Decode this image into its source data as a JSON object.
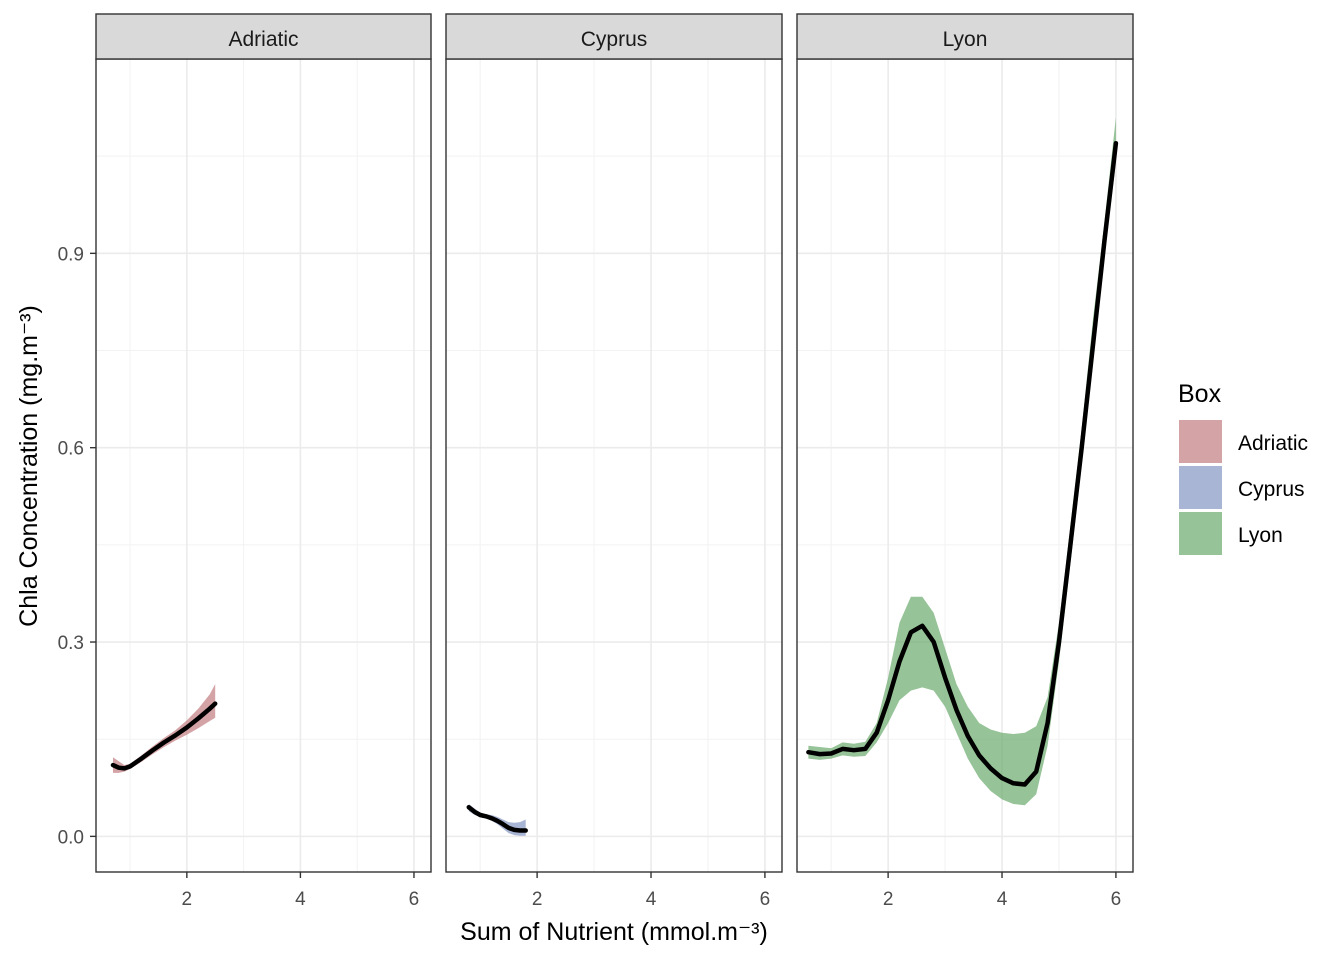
{
  "chart_data": {
    "type": "line",
    "xlabel": "Sum of Nutrient (mmol.m⁻³)",
    "ylabel": "Chla Concentration (mg.m⁻³)",
    "xlim": [
      0.4,
      6.3
    ],
    "ylim": [
      -0.055,
      1.2
    ],
    "x_ticks": [
      2,
      4,
      6
    ],
    "x_tick_labels": [
      "2",
      "4",
      "6"
    ],
    "y_ticks": [
      0.0,
      0.3,
      0.6,
      0.9
    ],
    "y_tick_labels": [
      "0.0",
      "0.3",
      "0.6",
      "0.9"
    ],
    "grid": true,
    "legend": {
      "title": "Box",
      "position": "right",
      "entries": [
        "Adriatic",
        "Cyprus",
        "Lyon"
      ]
    },
    "colors": {
      "Adriatic": "#c27c80",
      "Cyprus": "#8496c2",
      "Lyon": "#6aaa6b",
      "line": "#000000"
    },
    "panels": [
      {
        "name": "Adriatic",
        "x": [
          0.7,
          0.8,
          0.9,
          1.0,
          1.2,
          1.4,
          1.6,
          1.8,
          2.0,
          2.2,
          2.4,
          2.5
        ],
        "y": [
          0.11,
          0.106,
          0.105,
          0.108,
          0.12,
          0.133,
          0.145,
          0.156,
          0.168,
          0.182,
          0.197,
          0.205
        ],
        "lower": [
          0.098,
          0.098,
          0.1,
          0.104,
          0.115,
          0.127,
          0.138,
          0.148,
          0.157,
          0.167,
          0.178,
          0.183
        ],
        "upper": [
          0.122,
          0.116,
          0.11,
          0.112,
          0.125,
          0.139,
          0.152,
          0.164,
          0.179,
          0.197,
          0.219,
          0.235
        ]
      },
      {
        "name": "Cyprus",
        "x": [
          0.8,
          0.9,
          1.0,
          1.1,
          1.2,
          1.3,
          1.4,
          1.5,
          1.6,
          1.7,
          1.8
        ],
        "y": [
          0.045,
          0.038,
          0.033,
          0.031,
          0.028,
          0.024,
          0.019,
          0.013,
          0.01,
          0.009,
          0.009
        ],
        "lower": [
          0.039,
          0.033,
          0.03,
          0.028,
          0.024,
          0.019,
          0.012,
          0.005,
          0.002,
          0.001,
          0.001
        ],
        "upper": [
          0.05,
          0.043,
          0.037,
          0.034,
          0.033,
          0.03,
          0.026,
          0.022,
          0.021,
          0.022,
          0.026
        ]
      },
      {
        "name": "Lyon",
        "x": [
          0.6,
          0.8,
          1.0,
          1.2,
          1.4,
          1.6,
          1.8,
          2.0,
          2.2,
          2.4,
          2.6,
          2.8,
          3.0,
          3.2,
          3.4,
          3.6,
          3.8,
          4.0,
          4.2,
          4.4,
          4.6,
          4.8,
          5.0,
          5.2,
          5.4,
          5.6,
          5.8,
          6.0
        ],
        "y": [
          0.13,
          0.127,
          0.128,
          0.135,
          0.133,
          0.135,
          0.16,
          0.21,
          0.27,
          0.315,
          0.325,
          0.3,
          0.245,
          0.195,
          0.155,
          0.125,
          0.105,
          0.09,
          0.082,
          0.08,
          0.1,
          0.175,
          0.3,
          0.45,
          0.6,
          0.76,
          0.92,
          1.07
        ],
        "lower": [
          0.12,
          0.118,
          0.12,
          0.125,
          0.123,
          0.124,
          0.145,
          0.175,
          0.21,
          0.225,
          0.23,
          0.225,
          0.2,
          0.16,
          0.12,
          0.09,
          0.07,
          0.057,
          0.05,
          0.048,
          0.065,
          0.14,
          0.27,
          0.42,
          0.575,
          0.74,
          0.9,
          1.04
        ],
        "upper": [
          0.14,
          0.138,
          0.136,
          0.145,
          0.143,
          0.146,
          0.175,
          0.245,
          0.33,
          0.37,
          0.37,
          0.345,
          0.29,
          0.235,
          0.2,
          0.175,
          0.165,
          0.16,
          0.158,
          0.16,
          0.17,
          0.215,
          0.33,
          0.48,
          0.63,
          0.8,
          0.95,
          1.11
        ]
      }
    ]
  }
}
